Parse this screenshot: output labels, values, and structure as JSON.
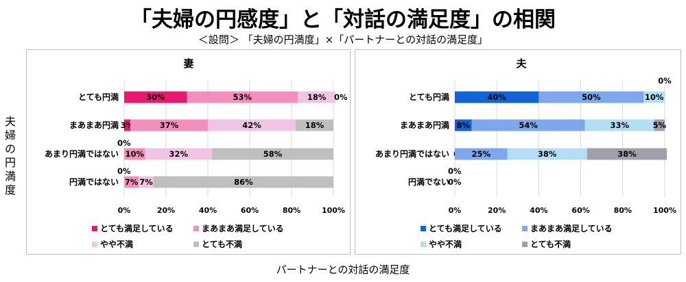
{
  "title": "「夫婦の円感度」と「対話の満足度」の相関",
  "subtitle": "＜設問＞ 「夫婦の円満度」×「パートナーとの対話の満足度」",
  "ylabel": "夫婦の円満度",
  "xlabel": "パートナーとの対話の満足度",
  "chart_data": [
    {
      "type": "bar",
      "stacked": "horizontal-100%",
      "title": "妻",
      "categories": [
        "とても円満",
        "まあまあ円満",
        "あまり円満ではない",
        "円満ではない"
      ],
      "xlim": [
        0,
        100
      ],
      "xticks": [
        "0%",
        "20%",
        "40%",
        "60%",
        "80%",
        "100%"
      ],
      "grid": true,
      "legend": "bottom",
      "series": [
        {
          "name": "とても満足している",
          "color": "#e8196f",
          "values": [
            30,
            3,
            0,
            0
          ]
        },
        {
          "name": "まあまあ満足している",
          "color": "#f48fbd",
          "values": [
            53,
            37,
            10,
            7
          ]
        },
        {
          "name": "やや不満",
          "color": "#f2c4e4",
          "values": [
            18,
            42,
            32,
            7
          ]
        },
        {
          "name": "とても不満",
          "color": "#bfbfbf",
          "values": [
            0,
            18,
            58,
            86
          ]
        }
      ]
    },
    {
      "type": "bar",
      "stacked": "horizontal-100%",
      "title": "夫",
      "categories": [
        "とても円満",
        "まあまあ円満",
        "あまり円満ではない",
        "円満でない"
      ],
      "xlim": [
        0,
        100
      ],
      "xticks": [
        "0%",
        "20%",
        "40%",
        "60%",
        "80%",
        "100%"
      ],
      "grid": true,
      "legend": "bottom",
      "series": [
        {
          "name": "とても満足している",
          "color": "#1263d8",
          "values": [
            40,
            8,
            0,
            0
          ]
        },
        {
          "name": "まあまあ満足している",
          "color": "#7ea7ee",
          "values": [
            50,
            54,
            25,
            null
          ]
        },
        {
          "name": "やや不満",
          "color": "#b3def6",
          "values": [
            10,
            33,
            38,
            null
          ]
        },
        {
          "name": "とても不満",
          "color": "#a0a0ab",
          "values": [
            0,
            5,
            38,
            null
          ]
        }
      ]
    }
  ]
}
